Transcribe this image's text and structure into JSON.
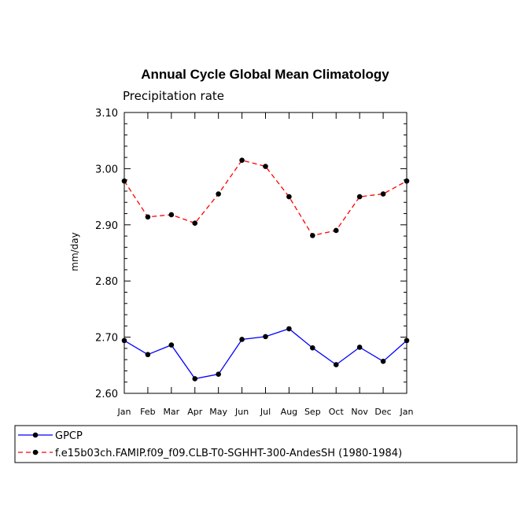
{
  "chart_data": {
    "type": "line",
    "title": "Annual Cycle Global Mean Climatology",
    "subtitle": "Precipitation rate",
    "ylabel": "mm/day",
    "xlabel": "",
    "ylim": [
      2.6,
      3.1
    ],
    "yticks": [
      "2.60",
      "2.70",
      "2.80",
      "2.90",
      "3.00",
      "3.10"
    ],
    "categories": [
      "Jan",
      "Feb",
      "Mar",
      "Apr",
      "May",
      "Jun",
      "Jul",
      "Aug",
      "Sep",
      "Oct",
      "Nov",
      "Dec",
      "Jan"
    ],
    "series": [
      {
        "name": "GPCP",
        "color": "#0000ff",
        "dash": "solid",
        "values": [
          2.694,
          2.669,
          2.686,
          2.626,
          2.634,
          2.696,
          2.701,
          2.715,
          2.681,
          2.651,
          2.682,
          2.657,
          2.694
        ]
      },
      {
        "name": "f.e15b03ch.FAMIP.f09_f09.CLB-T0-SGHHT-300-AndesSH (1980-1984)",
        "color": "#ff0000",
        "dash": "dashed",
        "values": [
          2.978,
          2.914,
          2.918,
          2.903,
          2.955,
          3.015,
          3.004,
          2.95,
          2.881,
          2.89,
          2.95,
          2.955,
          2.978
        ]
      }
    ],
    "legend_position": "bottom"
  }
}
